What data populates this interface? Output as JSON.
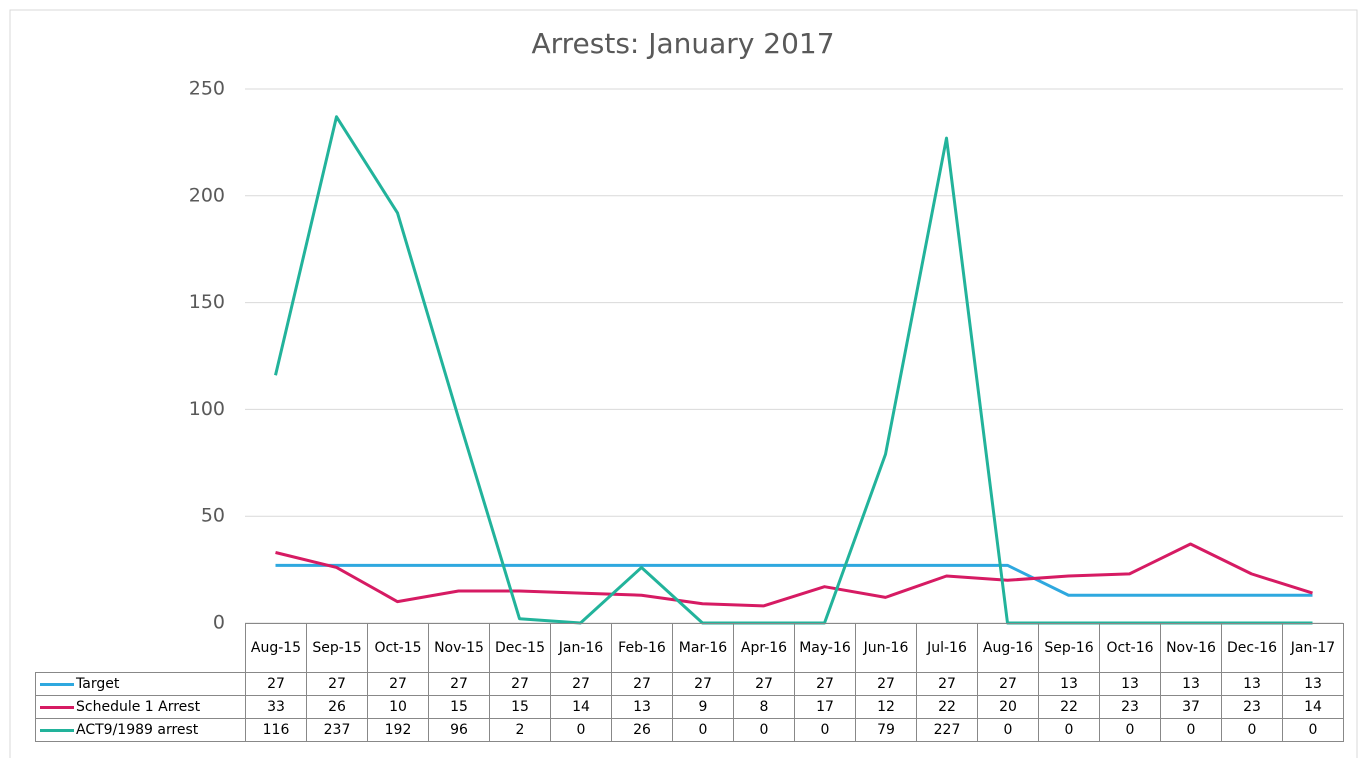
{
  "chart_data": {
    "type": "line",
    "title": "Arrests: January 2017",
    "categories": [
      "Aug-15",
      "Sep-15",
      "Oct-15",
      "Nov-15",
      "Dec-15",
      "Jan-16",
      "Feb-16",
      "Mar-16",
      "Apr-16",
      "May-16",
      "Jun-16",
      "Jul-16",
      "Aug-16",
      "Sep-16",
      "Oct-16",
      "Nov-16",
      "Dec-16",
      "Jan-17"
    ],
    "series": [
      {
        "name": "Target",
        "color": "#2ea8df",
        "values": [
          27,
          27,
          27,
          27,
          27,
          27,
          27,
          27,
          27,
          27,
          27,
          27,
          27,
          13,
          13,
          13,
          13,
          13
        ]
      },
      {
        "name": "Schedule 1 Arrest",
        "color": "#d61b63",
        "values": [
          33,
          26,
          10,
          15,
          15,
          14,
          13,
          9,
          8,
          17,
          12,
          22,
          20,
          22,
          23,
          37,
          23,
          14
        ]
      },
      {
        "name": "ACT9/1989 arrest",
        "color": "#22b39b",
        "values": [
          116,
          237,
          192,
          96,
          2,
          0,
          26,
          0,
          0,
          0,
          79,
          227,
          0,
          0,
          0,
          0,
          0,
          0
        ]
      }
    ],
    "ylim": [
      0,
      250
    ],
    "yticks": [
      0,
      50,
      100,
      150,
      200,
      250
    ],
    "grid": true
  }
}
